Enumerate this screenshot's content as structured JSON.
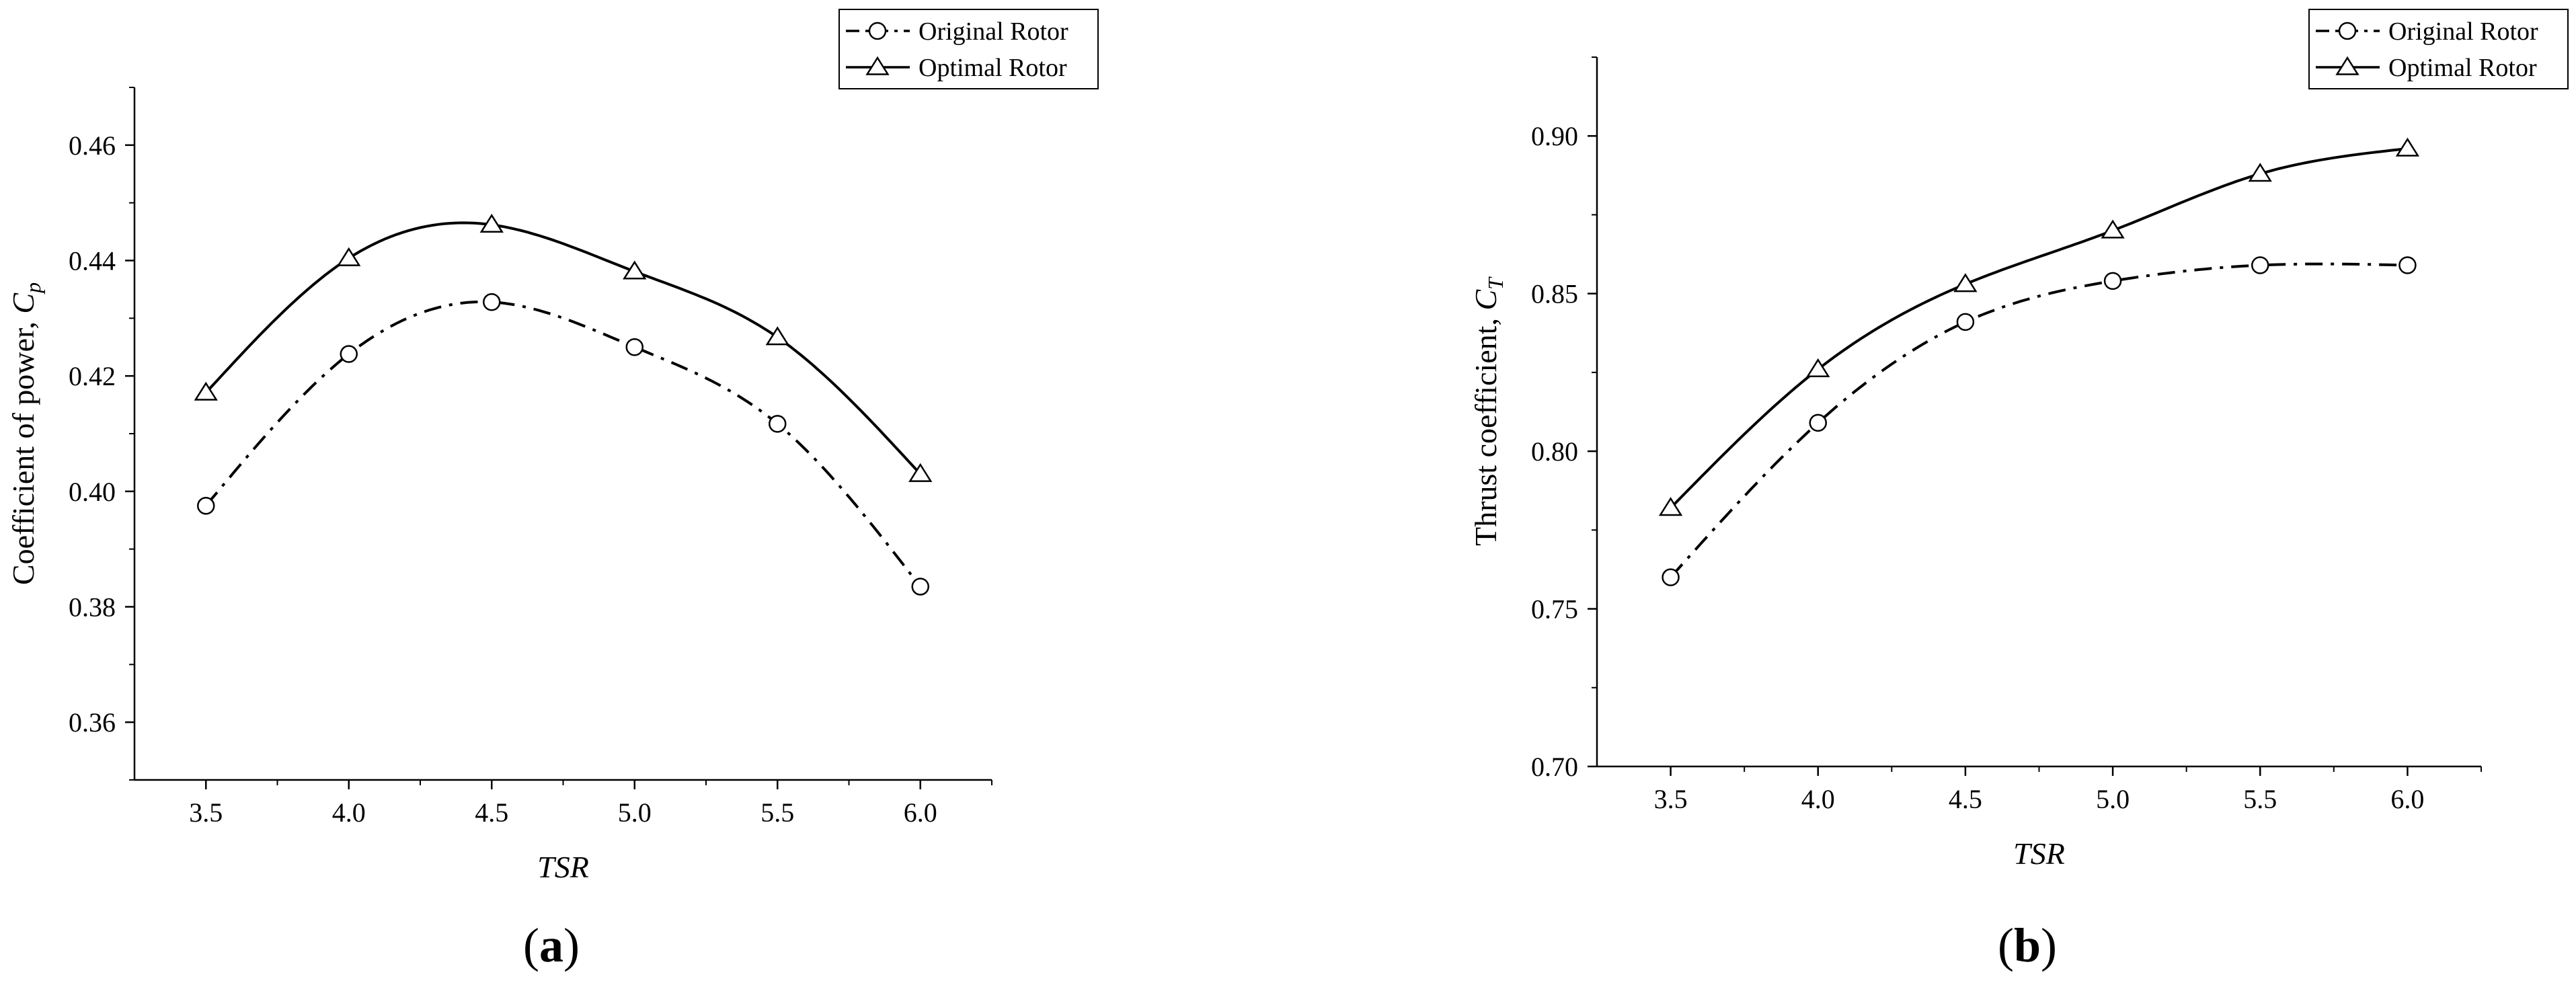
{
  "chart_data": [
    {
      "type": "line",
      "panel_label": "(a)",
      "panel_letter": "a",
      "xlabel": "TSR",
      "ylabel": "Coefficient of power, ",
      "ylabel_symbol": "C",
      "ylabel_subscript": "p",
      "xlim": [
        3.25,
        6.25
      ],
      "ylim": [
        0.35,
        0.47
      ],
      "xticks": [
        3.5,
        4.0,
        4.5,
        5.0,
        5.5,
        6.0
      ],
      "xtick_labels": [
        "3.5",
        "4.0",
        "4.5",
        "5.0",
        "5.5",
        "6.0"
      ],
      "yticks": [
        0.36,
        0.38,
        0.4,
        0.42,
        0.44,
        0.46
      ],
      "ytick_labels": [
        "0.36",
        "0.38",
        "0.40",
        "0.42",
        "0.44",
        "0.46"
      ],
      "grid": false,
      "legend_position": "top-right",
      "series": [
        {
          "name": "Original Rotor",
          "marker": "circle",
          "line_style": "dash-dot",
          "x": [
            3.5,
            4.0,
            4.5,
            5.0,
            5.5,
            6.0
          ],
          "y": [
            0.3975,
            0.4238,
            0.4328,
            0.425,
            0.4117,
            0.3835
          ]
        },
        {
          "name": "Optimal Rotor",
          "marker": "triangle",
          "line_style": "solid",
          "x": [
            3.5,
            4.0,
            4.5,
            5.0,
            5.5,
            6.0
          ],
          "y": [
            0.4171,
            0.4404,
            0.4462,
            0.4381,
            0.4267,
            0.403
          ]
        }
      ]
    },
    {
      "type": "line",
      "panel_label": "(b)",
      "panel_letter": "b",
      "xlabel": "TSR",
      "ylabel": "Thrust coefficient, ",
      "ylabel_symbol": "C",
      "ylabel_subscript": "T",
      "xlim": [
        3.25,
        6.25
      ],
      "ylim": [
        0.7,
        0.925
      ],
      "xticks": [
        3.5,
        4.0,
        4.5,
        5.0,
        5.5,
        6.0
      ],
      "xtick_labels": [
        "3.5",
        "4.0",
        "4.5",
        "5.0",
        "5.5",
        "6.0"
      ],
      "yticks": [
        0.7,
        0.75,
        0.8,
        0.85,
        0.9
      ],
      "ytick_labels": [
        "0.70",
        "0.75",
        "0.80",
        "0.85",
        "0.90"
      ],
      "grid": false,
      "legend_position": "top-right",
      "series": [
        {
          "name": "Original Rotor",
          "marker": "circle",
          "line_style": "dash-dot",
          "x": [
            3.5,
            4.0,
            4.5,
            5.0,
            5.5,
            6.0
          ],
          "y": [
            0.76,
            0.809,
            0.841,
            0.854,
            0.859,
            0.859
          ]
        },
        {
          "name": "Optimal Rotor",
          "marker": "triangle",
          "line_style": "solid",
          "x": [
            3.5,
            4.0,
            4.5,
            5.0,
            5.5,
            6.0
          ],
          "y": [
            0.782,
            0.826,
            0.853,
            0.87,
            0.888,
            0.896
          ]
        }
      ]
    }
  ]
}
